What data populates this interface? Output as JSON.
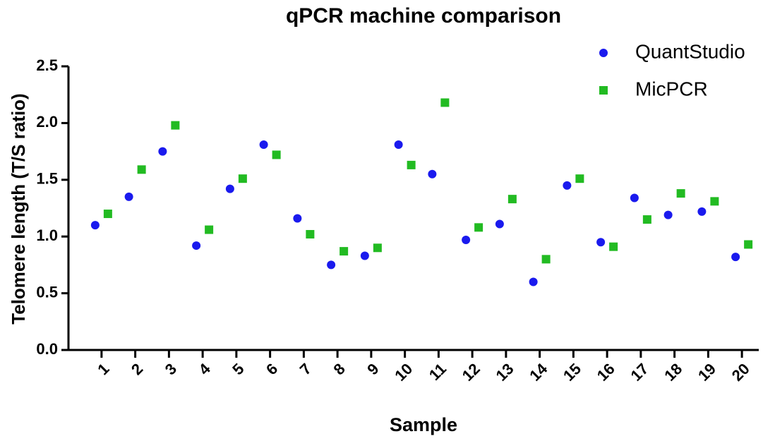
{
  "chart_data": {
    "type": "scatter",
    "title": "qPCR machine comparison",
    "x_label": "Sample",
    "y_label": "Telomere length (T/S ratio)",
    "categories": [
      "1",
      "2",
      "3",
      "4",
      "5",
      "6",
      "7",
      "8",
      "9",
      "10",
      "11",
      "12",
      "13",
      "14",
      "15",
      "16",
      "17",
      "18",
      "19",
      "20"
    ],
    "series": [
      {
        "name": "QuantStudio",
        "color": "#1a1aee",
        "marker": "circle",
        "values": [
          1.1,
          1.35,
          1.75,
          0.92,
          1.42,
          1.81,
          1.16,
          0.75,
          0.83,
          1.81,
          1.55,
          0.97,
          1.11,
          0.6,
          1.45,
          0.95,
          1.34,
          1.19,
          1.22,
          0.82
        ]
      },
      {
        "name": "MicPCR",
        "color": "#22bb22",
        "marker": "square",
        "values": [
          1.2,
          1.59,
          1.98,
          1.06,
          1.51,
          1.72,
          1.02,
          0.87,
          0.9,
          1.63,
          2.18,
          1.08,
          1.33,
          0.8,
          1.51,
          0.91,
          1.15,
          1.38,
          1.31,
          0.93
        ]
      }
    ],
    "ylim": [
      0,
      2.5
    ],
    "yticks": [
      {
        "value": 0,
        "label": "0.0"
      },
      0.5,
      {
        "value": 1,
        "label": "1.0"
      },
      1.5,
      {
        "value": 2,
        "label": "2.0"
      },
      2.5
    ],
    "grid": false,
    "legend": "upper right"
  }
}
